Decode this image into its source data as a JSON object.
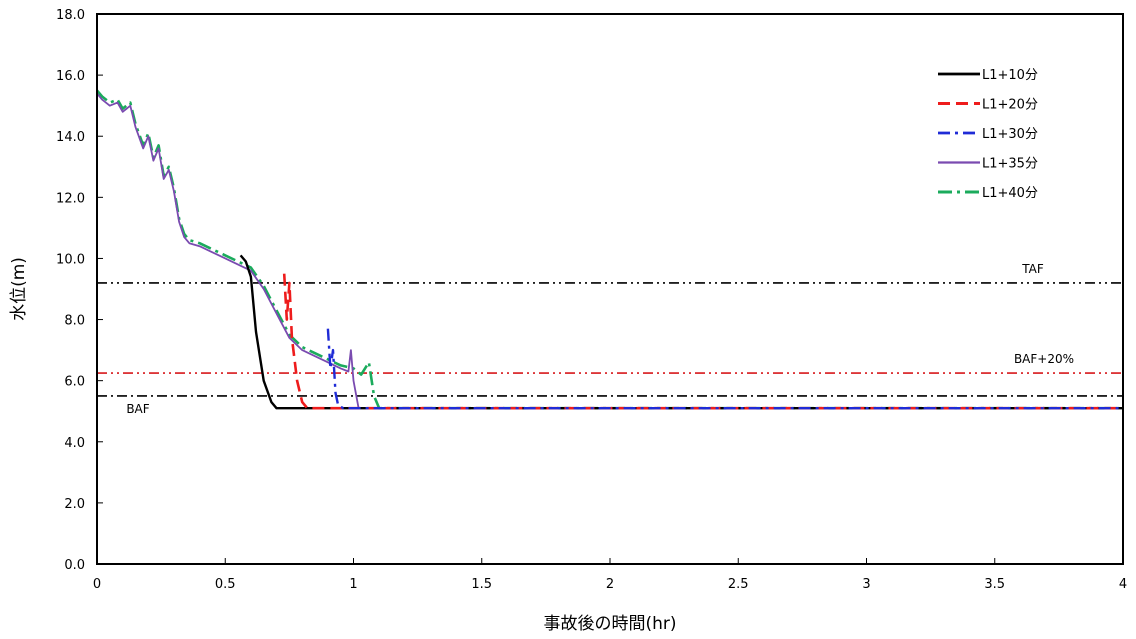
{
  "chart_data": {
    "type": "line",
    "xlabel": "事故後の時間(hr)",
    "ylabel": "水位(m)",
    "xlim": [
      0,
      4
    ],
    "ylim": [
      0,
      18
    ],
    "xticks": [
      "0",
      "0.5",
      "1",
      "1.5",
      "2",
      "2.5",
      "3",
      "3.5",
      "4"
    ],
    "yticks": [
      "0.0",
      "2.0",
      "4.0",
      "6.0",
      "8.0",
      "10.0",
      "12.0",
      "14.0",
      "16.0",
      "18.0"
    ],
    "grid": false,
    "legend_position": "top-right",
    "series": [
      {
        "name": "L1+10分",
        "color": "#000000",
        "dash": "",
        "width": 2.4,
        "x": [
          0.56,
          0.58,
          0.6,
          0.62,
          0.65,
          0.68,
          0.7,
          4.0
        ],
        "y": [
          10.1,
          9.9,
          9.4,
          7.6,
          6.0,
          5.3,
          5.1,
          5.1
        ]
      },
      {
        "name": "L1+20分",
        "color": "#ee1c1c",
        "dash": "12,6",
        "width": 2.6,
        "x": [
          0.73,
          0.74,
          0.75,
          0.76,
          0.78,
          0.8,
          0.82,
          4.0
        ],
        "y": [
          9.5,
          8.0,
          9.2,
          7.4,
          6.0,
          5.3,
          5.1,
          5.1
        ]
      },
      {
        "name": "L1+30分",
        "color": "#1f2bd6",
        "dash": "12,5,3,5",
        "width": 2.4,
        "x": [
          0.9,
          0.91,
          0.92,
          0.93,
          0.94,
          0.96,
          4.0
        ],
        "y": [
          7.7,
          6.4,
          7.0,
          5.6,
          5.2,
          5.1,
          5.1
        ]
      },
      {
        "name": "L1+35分",
        "color": "#7a4bb0",
        "dash": "",
        "width": 1.8,
        "x": [
          0,
          0.02,
          0.05,
          0.08,
          0.1,
          0.13,
          0.15,
          0.18,
          0.2,
          0.22,
          0.24,
          0.26,
          0.28,
          0.3,
          0.32,
          0.34,
          0.36,
          0.4,
          0.45,
          0.5,
          0.55,
          0.6,
          0.65,
          0.7,
          0.75,
          0.8,
          0.85,
          0.9,
          0.95,
          0.98,
          0.99,
          1.0,
          1.02,
          4.0
        ],
        "y": [
          15.4,
          15.2,
          15.0,
          15.1,
          14.8,
          15.0,
          14.3,
          13.6,
          14.0,
          13.2,
          13.6,
          12.6,
          12.9,
          12.2,
          11.2,
          10.7,
          10.5,
          10.4,
          10.2,
          10.0,
          9.8,
          9.6,
          9.0,
          8.2,
          7.4,
          7.0,
          6.8,
          6.6,
          6.4,
          6.3,
          7.0,
          6.0,
          5.1,
          5.1
        ]
      },
      {
        "name": "L1+40分",
        "color": "#1bab5c",
        "dash": "14,5,3,5",
        "width": 2.6,
        "x": [
          0,
          0.02,
          0.05,
          0.08,
          0.1,
          0.13,
          0.15,
          0.18,
          0.2,
          0.22,
          0.24,
          0.26,
          0.28,
          0.3,
          0.32,
          0.34,
          0.36,
          0.4,
          0.45,
          0.5,
          0.55,
          0.6,
          0.65,
          0.7,
          0.75,
          0.8,
          0.85,
          0.9,
          0.95,
          1.0,
          1.03,
          1.06,
          1.08,
          1.1,
          4.0
        ],
        "y": [
          15.5,
          15.3,
          15.1,
          15.2,
          14.9,
          15.1,
          14.4,
          13.7,
          14.1,
          13.3,
          13.7,
          12.7,
          13.0,
          12.3,
          11.3,
          10.8,
          10.6,
          10.5,
          10.3,
          10.1,
          9.9,
          9.7,
          9.1,
          8.3,
          7.5,
          7.1,
          6.9,
          6.7,
          6.5,
          6.4,
          6.2,
          6.6,
          5.5,
          5.1,
          5.1
        ]
      }
    ],
    "reference_lines": [
      {
        "label": "TAF",
        "y": 9.2,
        "color": "#000000",
        "dash": "10,4,2,4,2,4"
      },
      {
        "label": "BAF+20%",
        "y": 6.25,
        "color": "#d7191c",
        "dash": "10,4,2,4,2,4"
      },
      {
        "label": "BAF",
        "y": 5.5,
        "color": "#000000",
        "dash": "10,4,2,4"
      }
    ]
  }
}
